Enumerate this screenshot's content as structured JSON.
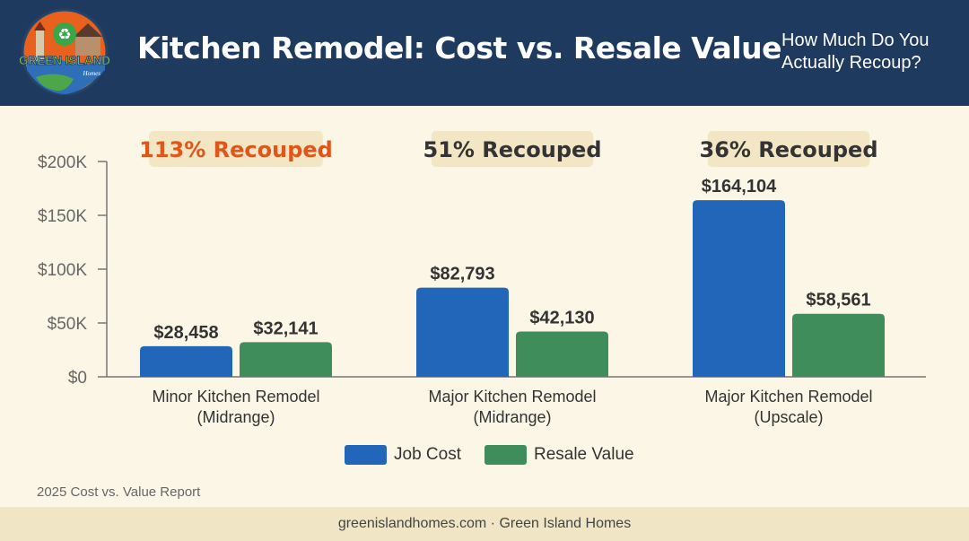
{
  "header": {
    "title": "Kitchen Remodel: Cost vs. Resale Value",
    "subtitle_line1": "How Much Do You",
    "subtitle_line2": "Actually Recoup?",
    "logo_text": "GREEN ISLAND",
    "logo_subtext": "Homes"
  },
  "colors": {
    "header_bg": "#1e3a5f",
    "page_bg": "#fbf6e6",
    "job_cost": "#2166b8",
    "resale_value": "#3f8d5a",
    "highlight": "#e2551a",
    "badge_bg": "#f2e6c4"
  },
  "chart_data": {
    "type": "bar",
    "categories": [
      [
        "Minor Kitchen Remodel",
        "(Midrange)"
      ],
      [
        "Major Kitchen Remodel",
        "(Midrange)"
      ],
      [
        "Major Kitchen Remodel",
        "(Upscale)"
      ]
    ],
    "series": [
      {
        "name": "Job Cost",
        "values": [
          28458,
          82793,
          164104
        ],
        "labels": [
          "$28,458",
          "$82,793",
          "$164,104"
        ],
        "color": "#2166b8"
      },
      {
        "name": "Resale Value",
        "values": [
          32141,
          42130,
          58561
        ],
        "labels": [
          "$32,141",
          "$42,130",
          "$58,561"
        ],
        "color": "#3f8d5a"
      }
    ],
    "recouped": [
      "113% Recouped",
      "51% Recouped",
      "36% Recouped"
    ],
    "recouped_highlight": [
      true,
      false,
      false
    ],
    "ylim": [
      0,
      200000
    ],
    "yticks": [
      0,
      50000,
      100000,
      150000,
      200000
    ],
    "ytick_labels": [
      "$0",
      "$50K",
      "$100K",
      "$150K",
      "$200K"
    ],
    "legend_position": "bottom-center",
    "grid": false
  },
  "legend": {
    "job_cost": "Job Cost",
    "resale_value": "Resale Value"
  },
  "source": "2025 Cost vs. Value Report",
  "footer": "greenislandhomes.com · Green Island Homes"
}
